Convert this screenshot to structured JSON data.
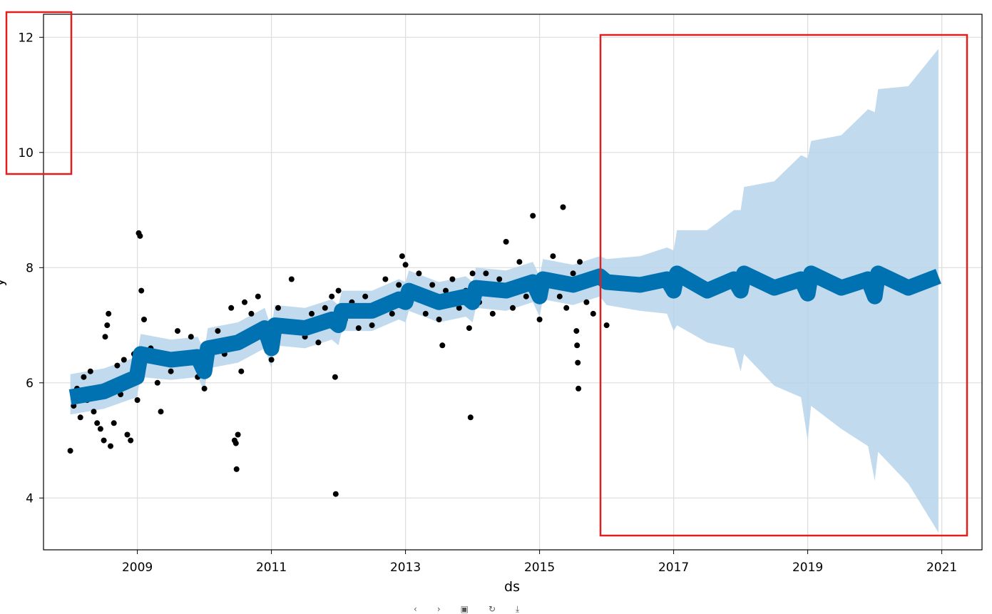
{
  "chart_data": {
    "type": "scatter",
    "title": "",
    "xlabel": "ds",
    "ylabel": "y",
    "xlim": [
      2007.6,
      2021.6
    ],
    "ylim": [
      3.1,
      12.4
    ],
    "x_ticks": [
      2009,
      2011,
      2013,
      2015,
      2017,
      2019,
      2021
    ],
    "x_tick_labels": [
      "2009",
      "2011",
      "2013",
      "2015",
      "2017",
      "2019",
      "2021"
    ],
    "y_ticks": [
      4,
      6,
      8,
      10,
      12
    ],
    "y_tick_labels": [
      "4",
      "6",
      "8",
      "10",
      "12"
    ],
    "grid": true,
    "legend": "none",
    "history_end": 2016.0,
    "forecast_end": 2020.95,
    "colors": {
      "observed": "#000000",
      "forecast": "#0072B2",
      "interval": "#b7d4ea",
      "grid": "#dddddd",
      "annotation": "#e02020"
    },
    "series": [
      {
        "name": "observed",
        "kind": "scatter",
        "points": [
          [
            2008.0,
            4.82
          ],
          [
            2008.05,
            5.6
          ],
          [
            2008.1,
            5.9
          ],
          [
            2008.15,
            5.4
          ],
          [
            2008.2,
            6.1
          ],
          [
            2008.25,
            5.7
          ],
          [
            2008.3,
            6.2
          ],
          [
            2008.35,
            5.5
          ],
          [
            2008.4,
            5.3
          ],
          [
            2008.45,
            5.2
          ],
          [
            2008.5,
            5.0
          ],
          [
            2008.52,
            6.8
          ],
          [
            2008.55,
            7.0
          ],
          [
            2008.57,
            7.2
          ],
          [
            2008.6,
            4.9
          ],
          [
            2008.65,
            5.3
          ],
          [
            2008.7,
            6.3
          ],
          [
            2008.75,
            5.8
          ],
          [
            2008.8,
            6.4
          ],
          [
            2008.85,
            5.1
          ],
          [
            2008.9,
            5.0
          ],
          [
            2008.95,
            6.5
          ],
          [
            2009.0,
            5.7
          ],
          [
            2009.02,
            8.6
          ],
          [
            2009.04,
            8.55
          ],
          [
            2009.06,
            7.6
          ],
          [
            2009.1,
            7.1
          ],
          [
            2009.2,
            6.6
          ],
          [
            2009.3,
            6.0
          ],
          [
            2009.35,
            5.5
          ],
          [
            2009.5,
            6.2
          ],
          [
            2009.6,
            6.9
          ],
          [
            2009.7,
            6.4
          ],
          [
            2009.8,
            6.8
          ],
          [
            2009.9,
            6.1
          ],
          [
            2010.0,
            5.9
          ],
          [
            2010.1,
            6.6
          ],
          [
            2010.2,
            6.9
          ],
          [
            2010.3,
            6.5
          ],
          [
            2010.4,
            7.3
          ],
          [
            2010.45,
            5.0
          ],
          [
            2010.47,
            4.95
          ],
          [
            2010.48,
            4.5
          ],
          [
            2010.5,
            5.1
          ],
          [
            2010.55,
            6.2
          ],
          [
            2010.6,
            7.4
          ],
          [
            2010.7,
            7.2
          ],
          [
            2010.8,
            7.5
          ],
          [
            2010.9,
            7.0
          ],
          [
            2011.0,
            6.4
          ],
          [
            2011.1,
            7.3
          ],
          [
            2011.2,
            6.9
          ],
          [
            2011.3,
            7.8
          ],
          [
            2011.4,
            7.0
          ],
          [
            2011.5,
            6.8
          ],
          [
            2011.6,
            7.2
          ],
          [
            2011.7,
            6.7
          ],
          [
            2011.8,
            7.3
          ],
          [
            2011.9,
            7.5
          ],
          [
            2011.95,
            6.1
          ],
          [
            2011.96,
            4.07
          ],
          [
            2012.0,
            7.6
          ],
          [
            2012.1,
            7.1
          ],
          [
            2012.2,
            7.4
          ],
          [
            2012.3,
            6.95
          ],
          [
            2012.4,
            7.5
          ],
          [
            2012.5,
            7.0
          ],
          [
            2012.6,
            7.3
          ],
          [
            2012.7,
            7.8
          ],
          [
            2012.8,
            7.2
          ],
          [
            2012.9,
            7.7
          ],
          [
            2012.95,
            8.2
          ],
          [
            2013.0,
            8.05
          ],
          [
            2013.1,
            7.5
          ],
          [
            2013.2,
            7.9
          ],
          [
            2013.3,
            7.2
          ],
          [
            2013.4,
            7.7
          ],
          [
            2013.5,
            7.1
          ],
          [
            2013.55,
            6.65
          ],
          [
            2013.6,
            7.6
          ],
          [
            2013.7,
            7.8
          ],
          [
            2013.8,
            7.3
          ],
          [
            2013.9,
            7.6
          ],
          [
            2013.95,
            6.95
          ],
          [
            2013.97,
            5.4
          ],
          [
            2014.0,
            7.9
          ],
          [
            2014.1,
            7.4
          ],
          [
            2014.2,
            7.9
          ],
          [
            2014.3,
            7.2
          ],
          [
            2014.4,
            7.8
          ],
          [
            2014.5,
            8.45
          ],
          [
            2014.6,
            7.3
          ],
          [
            2014.7,
            8.1
          ],
          [
            2014.8,
            7.5
          ],
          [
            2014.9,
            8.9
          ],
          [
            2015.0,
            7.1
          ],
          [
            2015.1,
            7.8
          ],
          [
            2015.2,
            8.2
          ],
          [
            2015.3,
            7.5
          ],
          [
            2015.35,
            9.05
          ],
          [
            2015.4,
            7.3
          ],
          [
            2015.5,
            7.9
          ],
          [
            2015.55,
            6.9
          ],
          [
            2015.56,
            6.65
          ],
          [
            2015.57,
            6.35
          ],
          [
            2015.58,
            5.9
          ],
          [
            2015.6,
            8.1
          ],
          [
            2015.7,
            7.4
          ],
          [
            2015.8,
            7.2
          ],
          [
            2015.9,
            7.9
          ],
          [
            2016.0,
            7.0
          ]
        ]
      },
      {
        "name": "yhat",
        "kind": "line",
        "points": [
          [
            2008.0,
            5.75
          ],
          [
            2008.5,
            5.85
          ],
          [
            2008.99,
            6.1
          ],
          [
            2009.05,
            6.5
          ],
          [
            2009.5,
            6.4
          ],
          [
            2009.9,
            6.45
          ],
          [
            2010.0,
            6.2
          ],
          [
            2010.05,
            6.6
          ],
          [
            2010.5,
            6.7
          ],
          [
            2010.9,
            6.95
          ],
          [
            2011.0,
            6.6
          ],
          [
            2011.05,
            7.0
          ],
          [
            2011.5,
            6.95
          ],
          [
            2011.9,
            7.1
          ],
          [
            2012.0,
            7.0
          ],
          [
            2012.05,
            7.25
          ],
          [
            2012.5,
            7.25
          ],
          [
            2012.9,
            7.45
          ],
          [
            2013.0,
            7.4
          ],
          [
            2013.05,
            7.6
          ],
          [
            2013.5,
            7.4
          ],
          [
            2013.9,
            7.5
          ],
          [
            2014.0,
            7.4
          ],
          [
            2014.05,
            7.65
          ],
          [
            2014.5,
            7.6
          ],
          [
            2014.9,
            7.75
          ],
          [
            2015.0,
            7.5
          ],
          [
            2015.05,
            7.8
          ],
          [
            2015.5,
            7.7
          ],
          [
            2015.9,
            7.85
          ],
          [
            2016.0,
            7.75
          ],
          [
            2016.5,
            7.7
          ],
          [
            2016.9,
            7.8
          ],
          [
            2017.0,
            7.6
          ],
          [
            2017.05,
            7.9
          ],
          [
            2017.5,
            7.6
          ],
          [
            2017.9,
            7.8
          ],
          [
            2018.0,
            7.6
          ],
          [
            2018.05,
            7.9
          ],
          [
            2018.5,
            7.65
          ],
          [
            2018.9,
            7.8
          ],
          [
            2019.0,
            7.55
          ],
          [
            2019.05,
            7.9
          ],
          [
            2019.5,
            7.65
          ],
          [
            2019.9,
            7.8
          ],
          [
            2020.0,
            7.5
          ],
          [
            2020.05,
            7.9
          ],
          [
            2020.5,
            7.65
          ],
          [
            2020.95,
            7.85
          ]
        ]
      },
      {
        "name": "yhat_band",
        "kind": "band",
        "points": [
          [
            2008.0,
            5.45,
            6.15
          ],
          [
            2008.5,
            5.55,
            6.25
          ],
          [
            2008.99,
            5.75,
            6.45
          ],
          [
            2009.05,
            6.1,
            6.85
          ],
          [
            2009.5,
            6.05,
            6.75
          ],
          [
            2009.9,
            6.1,
            6.8
          ],
          [
            2010.0,
            5.85,
            6.55
          ],
          [
            2010.05,
            6.25,
            6.95
          ],
          [
            2010.5,
            6.35,
            7.05
          ],
          [
            2010.9,
            6.6,
            7.3
          ],
          [
            2011.0,
            6.25,
            6.95
          ],
          [
            2011.05,
            6.65,
            7.35
          ],
          [
            2011.5,
            6.6,
            7.3
          ],
          [
            2011.9,
            6.75,
            7.45
          ],
          [
            2012.0,
            6.65,
            7.35
          ],
          [
            2012.05,
            6.9,
            7.6
          ],
          [
            2012.5,
            6.9,
            7.6
          ],
          [
            2012.9,
            7.1,
            7.8
          ],
          [
            2013.0,
            7.05,
            7.75
          ],
          [
            2013.05,
            7.25,
            7.95
          ],
          [
            2013.5,
            7.05,
            7.75
          ],
          [
            2013.9,
            7.15,
            7.85
          ],
          [
            2014.0,
            7.05,
            7.75
          ],
          [
            2014.05,
            7.3,
            8.0
          ],
          [
            2014.5,
            7.25,
            7.95
          ],
          [
            2014.9,
            7.4,
            8.1
          ],
          [
            2015.0,
            7.15,
            7.85
          ],
          [
            2015.05,
            7.45,
            8.15
          ],
          [
            2015.5,
            7.35,
            8.05
          ],
          [
            2015.9,
            7.5,
            8.2
          ],
          [
            2016.0,
            7.35,
            8.15
          ],
          [
            2016.5,
            7.25,
            8.2
          ],
          [
            2016.9,
            7.2,
            8.35
          ],
          [
            2017.0,
            6.9,
            8.3
          ],
          [
            2017.05,
            7.0,
            8.65
          ],
          [
            2017.5,
            6.7,
            8.65
          ],
          [
            2017.9,
            6.6,
            9.0
          ],
          [
            2018.0,
            6.2,
            9.0
          ],
          [
            2018.05,
            6.5,
            9.4
          ],
          [
            2018.5,
            5.95,
            9.5
          ],
          [
            2018.9,
            5.75,
            9.95
          ],
          [
            2019.0,
            5.0,
            9.9
          ],
          [
            2019.05,
            5.6,
            10.2
          ],
          [
            2019.5,
            5.2,
            10.3
          ],
          [
            2019.9,
            4.9,
            10.75
          ],
          [
            2020.0,
            4.3,
            10.7
          ],
          [
            2020.05,
            4.8,
            11.1
          ],
          [
            2020.5,
            4.25,
            11.15
          ],
          [
            2020.95,
            3.4,
            11.8
          ]
        ]
      }
    ]
  }
}
